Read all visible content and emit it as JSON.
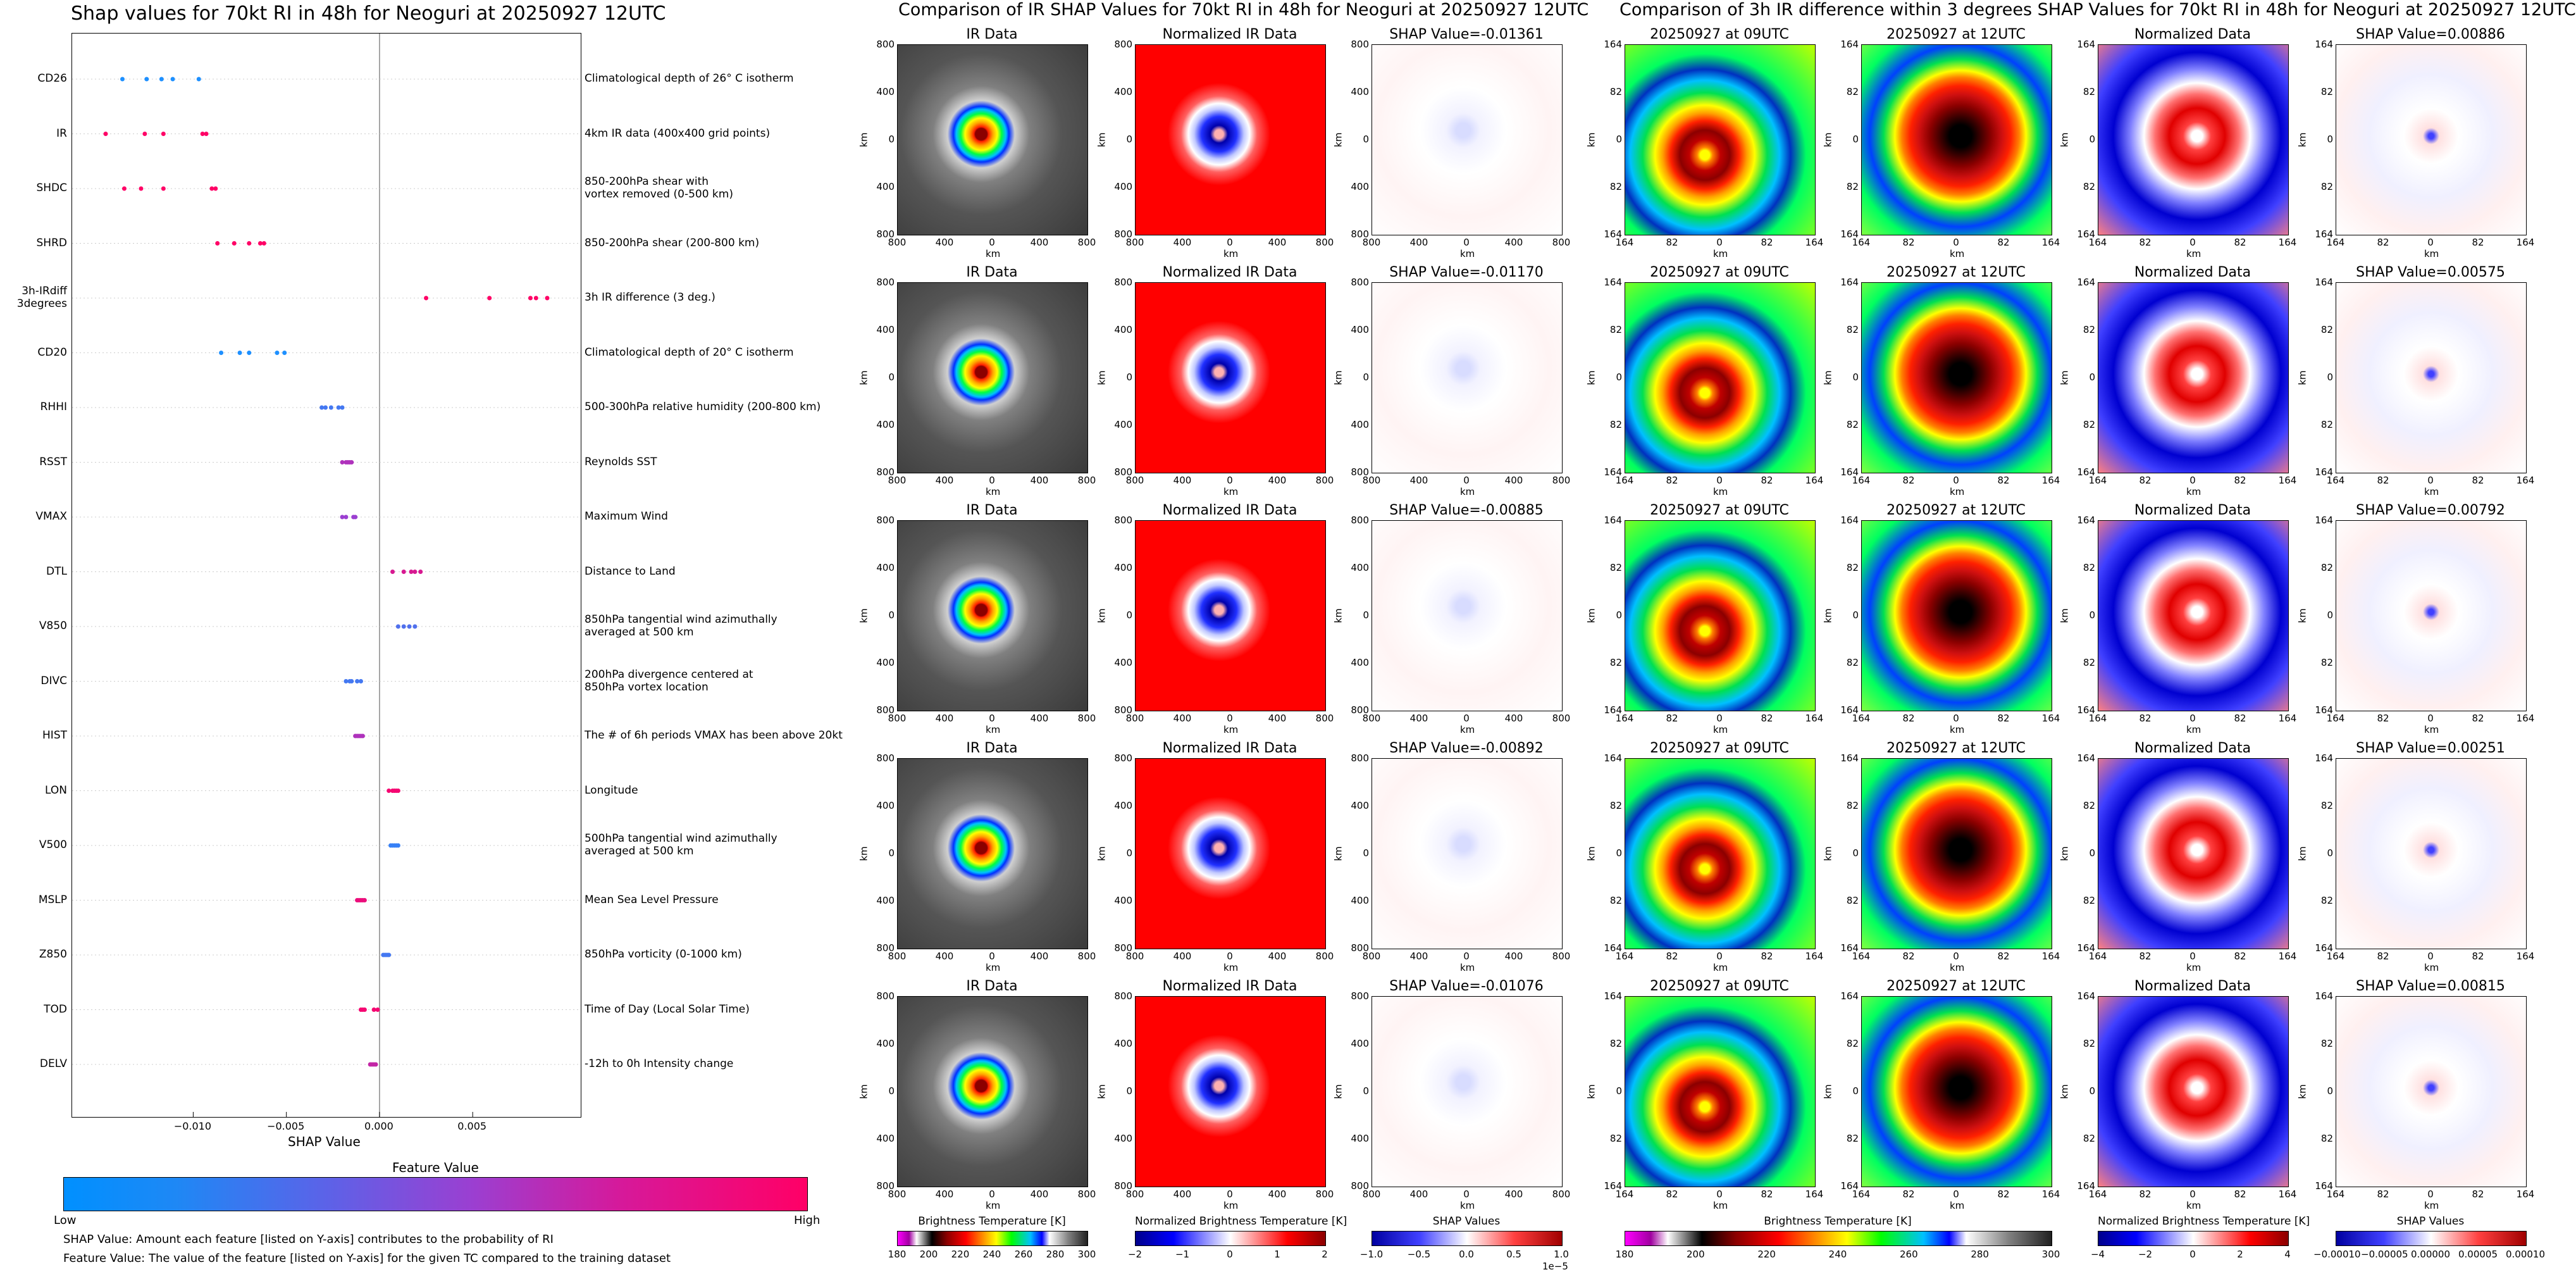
{
  "left": {
    "title": "Shap values for 70kt RI in 48h for Neoguri at 20250927 12UTC",
    "xlabel": "SHAP Value",
    "feature_value_label": "Feature Value",
    "low_label": "Low",
    "high_label": "High",
    "footnote1": "SHAP Value: Amount each feature [listed on Y-axis] contributes to the probability of RI",
    "footnote2": "Feature Value: The value of the feature [listed on Y-axis] for the given TC compared to the training dataset",
    "colors": {
      "low": "#1e90ff",
      "mid": "#9b3fd1",
      "high": "#ff0066"
    }
  },
  "mid": {
    "title": "Comparison of IR SHAP Values for 70kt RI in 48h for Neoguri at 20250927 12UTC",
    "col_titles": [
      "IR Data",
      "Normalized IR Data"
    ],
    "shap_titles": [
      "SHAP Value=-0.01361",
      "SHAP Value=-0.01170",
      "SHAP Value=-0.00885",
      "SHAP Value=-0.00892",
      "SHAP Value=-0.01076"
    ],
    "axis_label": "km",
    "ticks": [
      "800",
      "400",
      "0",
      "400",
      "800"
    ],
    "cb1_label": "Brightness Temperature [K]",
    "cb1_ticks": [
      "180",
      "200",
      "220",
      "240",
      "260",
      "280",
      "300"
    ],
    "cb2_label": "Normalized Brightness Temperature [K]",
    "cb2_ticks": [
      "−2",
      "−1",
      "0",
      "1",
      "2"
    ],
    "cb3_label": "SHAP Values",
    "cb3_ticks": [
      "−1.0",
      "−0.5",
      "0.0",
      "0.5",
      "1.0"
    ],
    "cb3_exp": "1e−5"
  },
  "right": {
    "title": "Comparison of 3h IR difference within 3 degrees SHAP Values for 70kt RI in 48h for Neoguri at 20250927 12UTC",
    "col_titles": [
      "20250927 at 09UTC",
      "20250927 at 12UTC",
      "Normalized Data"
    ],
    "shap_titles": [
      "SHAP Value=0.00886",
      "SHAP Value=0.00575",
      "SHAP Value=0.00792",
      "SHAP Value=0.00251",
      "SHAP Value=0.00815"
    ],
    "axis_label": "km",
    "ticks": [
      "164",
      "82",
      "0",
      "82",
      "164"
    ],
    "cb1_label": "Brightness Temperature [K]",
    "cb1_ticks": [
      "180",
      "200",
      "220",
      "240",
      "260",
      "280",
      "300"
    ],
    "cb2_label": "Normalized Brightness Temperature [K]",
    "cb2_ticks": [
      "−4",
      "−2",
      "0",
      "2",
      "4"
    ],
    "cb3_label": "SHAP Values",
    "cb3_ticks": [
      "−0.00010",
      "−0.00005",
      "0.00000",
      "0.00005",
      "0.00010"
    ]
  },
  "chart_data": [
    {
      "type": "scatter",
      "title": "Shap values for 70kt RI in 48h for Neoguri at 20250927 12UTC",
      "xlabel": "SHAP Value",
      "xlim": [
        -0.0165,
        0.0108
      ],
      "xticks": [
        "−0.010",
        "−0.005",
        "0.000",
        "0.005"
      ],
      "xtick_values": [
        -0.01,
        -0.005,
        0.0,
        0.005
      ],
      "legend": "colorbar-bottom",
      "features": [
        {
          "name": "CD26",
          "desc": "Climatological depth of 26° C isotherm",
          "points": [
            -0.0138,
            -0.0125,
            -0.0117,
            -0.0111,
            -0.0097
          ],
          "fv": 0.0
        },
        {
          "name": "IR",
          "desc": "4km IR data (400x400 grid points)",
          "points": [
            -0.0147,
            -0.0126,
            -0.0116,
            -0.0095,
            -0.0093
          ],
          "fv": 1.0
        },
        {
          "name": "SHDC",
          "desc": "850-200hPa shear with\nvortex removed (0-500 km)",
          "points": [
            -0.0137,
            -0.0128,
            -0.0116,
            -0.009,
            -0.0088
          ],
          "fv": 1.0
        },
        {
          "name": "SHRD",
          "desc": "850-200hPa shear (200-800 km)",
          "points": [
            -0.0087,
            -0.0078,
            -0.007,
            -0.0064,
            -0.0062
          ],
          "fv": 1.0
        },
        {
          "name": "3h-IRdiff\n3degrees",
          "desc": "3h IR difference (3 deg.)",
          "points": [
            0.0025,
            0.0059,
            0.0081,
            0.0084,
            0.009
          ],
          "fv": 1.0
        },
        {
          "name": "CD20",
          "desc": "Climatological depth of 20° C isotherm",
          "points": [
            -0.0085,
            -0.0075,
            -0.007,
            -0.0055,
            -0.0051
          ],
          "fv": 0.0
        },
        {
          "name": "RHHI",
          "desc": "500-300hPa relative humidity (200-800 km)",
          "points": [
            -0.0031,
            -0.0029,
            -0.0026,
            -0.0022,
            -0.002
          ],
          "fv": 0.15
        },
        {
          "name": "RSST",
          "desc": "Reynolds SST",
          "points": [
            -0.002,
            -0.0018,
            -0.0017,
            -0.0016,
            -0.0015
          ],
          "fv": 0.6
        },
        {
          "name": "VMAX",
          "desc": "Maximum Wind",
          "points": [
            -0.002,
            -0.0018,
            -0.0014,
            -0.0013
          ],
          "fv": 0.5
        },
        {
          "name": "DTL",
          "desc": "Distance to Land",
          "points": [
            0.0007,
            0.0013,
            0.0017,
            0.0019,
            0.0022
          ],
          "fv": 0.8
        },
        {
          "name": "V850",
          "desc": "850hPa tangential wind azimuthally\naveraged at 500 km",
          "points": [
            0.001,
            0.0013,
            0.0016,
            0.0019
          ],
          "fv": 0.2
        },
        {
          "name": "DIVC",
          "desc": "200hPa divergence centered at\n850hPa vortex location",
          "points": [
            -0.0018,
            -0.0016,
            -0.0015,
            -0.0012,
            -0.001
          ],
          "fv": 0.15
        },
        {
          "name": "HIST",
          "desc": "The # of 6h periods VMAX has been above 20kt",
          "points": [
            -0.0013,
            -0.0012,
            -0.0011,
            -0.001,
            -0.0009
          ],
          "fv": 0.6
        },
        {
          "name": "LON",
          "desc": "Longitude",
          "points": [
            0.0005,
            0.0007,
            0.0008,
            0.0009,
            0.001
          ],
          "fv": 0.95
        },
        {
          "name": "V500",
          "desc": "500hPa tangential wind azimuthally\naveraged at 500 km",
          "points": [
            0.0006,
            0.0007,
            0.0008,
            0.0009,
            0.001
          ],
          "fv": 0.1
        },
        {
          "name": "MSLP",
          "desc": "Mean Sea Level Pressure",
          "points": [
            -0.0012,
            -0.0011,
            -0.001,
            -0.0009,
            -0.0008
          ],
          "fv": 0.9
        },
        {
          "name": "Z850",
          "desc": "850hPa vorticity (0-1000 km)",
          "points": [
            0.0002,
            0.0003,
            0.0004,
            0.0005
          ],
          "fv": 0.15
        },
        {
          "name": "TOD",
          "desc": "Time of Day (Local Solar Time)",
          "points": [
            -0.001,
            -0.0009,
            -0.0008,
            -0.0003,
            -0.0001
          ],
          "fv": 0.95
        },
        {
          "name": "DELV",
          "desc": "-12h to 0h Intensity change",
          "points": [
            -0.0005,
            -0.0004,
            -0.0003,
            -0.0002
          ],
          "fv": 0.7
        }
      ]
    },
    {
      "type": "heatmap",
      "title": "Comparison of IR SHAP Values for 70kt RI in 48h for Neoguri at 20250927 12UTC",
      "columns": [
        "IR Data",
        "Normalized IR Data",
        "SHAP"
      ],
      "shap_values": [
        -0.01361,
        -0.0117,
        -0.00885,
        -0.00892,
        -0.01076
      ],
      "xlim": [
        -800,
        800
      ],
      "ylim": [
        -800,
        800
      ]
    },
    {
      "type": "heatmap",
      "title": "Comparison of 3h IR difference within 3 degrees SHAP Values for 70kt RI in 48h for Neoguri at 20250927 12UTC",
      "columns": [
        "20250927 at 09UTC",
        "20250927 at 12UTC",
        "Normalized Data",
        "SHAP"
      ],
      "shap_values": [
        0.00886,
        0.00575,
        0.00792,
        0.00251,
        0.00815
      ],
      "xlim": [
        -164,
        164
      ],
      "ylim": [
        -164,
        164
      ]
    }
  ]
}
